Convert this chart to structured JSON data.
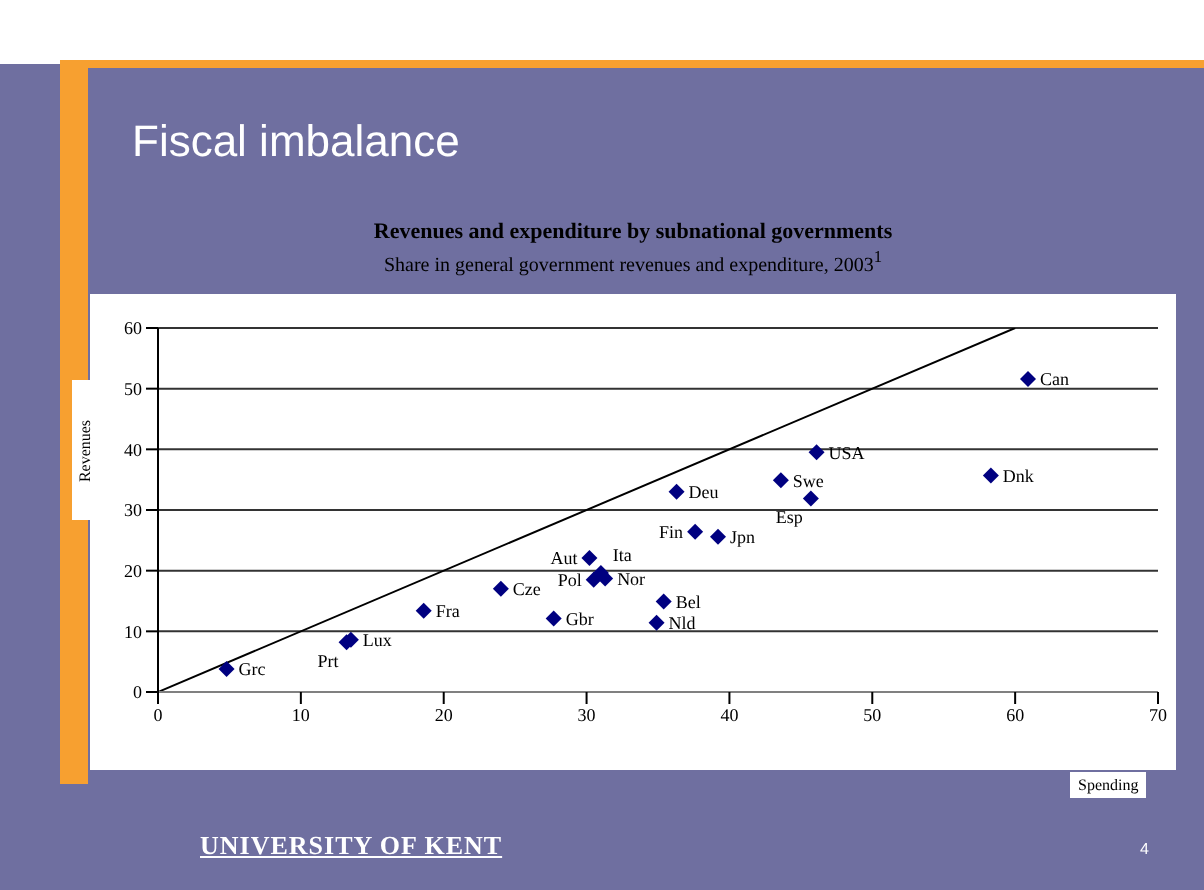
{
  "chart_data": {
    "type": "scatter",
    "title": "Revenues and expenditure by subnational governments",
    "subtitle": "Share in general government revenues and expenditure, 2003$^{1}$",
    "xlabel": "Spending",
    "ylabel": "Revenues",
    "annotations": [
      "Fiscal imbalance",
      "UNIVERSITY OF KENT",
      "4"
    ],
    "xlim": [
      0,
      70
    ],
    "xticks": [
      0,
      10,
      20,
      30,
      40,
      50,
      60,
      70
    ],
    "ylim": [
      0,
      60
    ],
    "yticks": [
      0,
      10,
      20,
      30,
      40,
      50,
      60
    ],
    "grid": "y",
    "legend": false,
    "marker": "diamond",
    "series": [
      {
        "name": "Grc",
        "color": "#000080",
        "x": [
          4.8
        ],
        "values": [
          3.8
        ]
      },
      {
        "name": "Prt",
        "color": "#000080",
        "x": [
          13.2
        ],
        "values": [
          8.2
        ]
      },
      {
        "name": "Lux",
        "color": "#000080",
        "x": [
          13.5
        ],
        "values": [
          8.6
        ]
      },
      {
        "name": "Fra",
        "color": "#000080",
        "x": [
          18.6
        ],
        "values": [
          13.4
        ]
      },
      {
        "name": "Cze",
        "color": "#000080",
        "x": [
          24.0
        ],
        "values": [
          17.0
        ]
      },
      {
        "name": "Gbr",
        "color": "#000080",
        "x": [
          27.7
        ],
        "values": [
          12.1
        ]
      },
      {
        "name": "Aut",
        "color": "#000080",
        "x": [
          30.2
        ],
        "values": [
          22.1
        ]
      },
      {
        "name": "Ita",
        "color": "#000080",
        "x": [
          31.0
        ],
        "values": [
          19.6
        ]
      },
      {
        "name": "Pol",
        "color": "#000080",
        "x": [
          30.5
        ],
        "values": [
          18.5
        ]
      },
      {
        "name": "Nor",
        "color": "#000080",
        "x": [
          31.3
        ],
        "values": [
          18.7
        ]
      },
      {
        "name": "Bel",
        "color": "#000080",
        "x": [
          35.4
        ],
        "values": [
          14.9
        ]
      },
      {
        "name": "Nld",
        "color": "#000080",
        "x": [
          34.9
        ],
        "values": [
          11.4
        ]
      },
      {
        "name": "Fin",
        "color": "#000080",
        "x": [
          37.6
        ],
        "values": [
          26.4
        ]
      },
      {
        "name": "Jpn",
        "color": "#000080",
        "x": [
          39.2
        ],
        "values": [
          25.6
        ]
      },
      {
        "name": "Deu",
        "color": "#000080",
        "x": [
          36.3
        ],
        "values": [
          33.0
        ]
      },
      {
        "name": "Swe",
        "color": "#000080",
        "x": [
          43.6
        ],
        "values": [
          34.9
        ]
      },
      {
        "name": "Esp",
        "color": "#000080",
        "x": [
          45.7
        ],
        "values": [
          31.9
        ]
      },
      {
        "name": "USA",
        "color": "#000080",
        "x": [
          46.1
        ],
        "values": [
          39.5
        ]
      },
      {
        "name": "Dnk",
        "color": "#000080",
        "x": [
          58.3
        ],
        "values": [
          35.7
        ]
      },
      {
        "name": "Can",
        "color": "#000080",
        "x": [
          60.9
        ],
        "values": [
          51.6
        ]
      },
      {
        "type": "line",
        "color": "#000000",
        "marker": "none",
        "x": [
          0,
          60
        ],
        "values": [
          0,
          60
        ]
      }
    ]
  }
}
